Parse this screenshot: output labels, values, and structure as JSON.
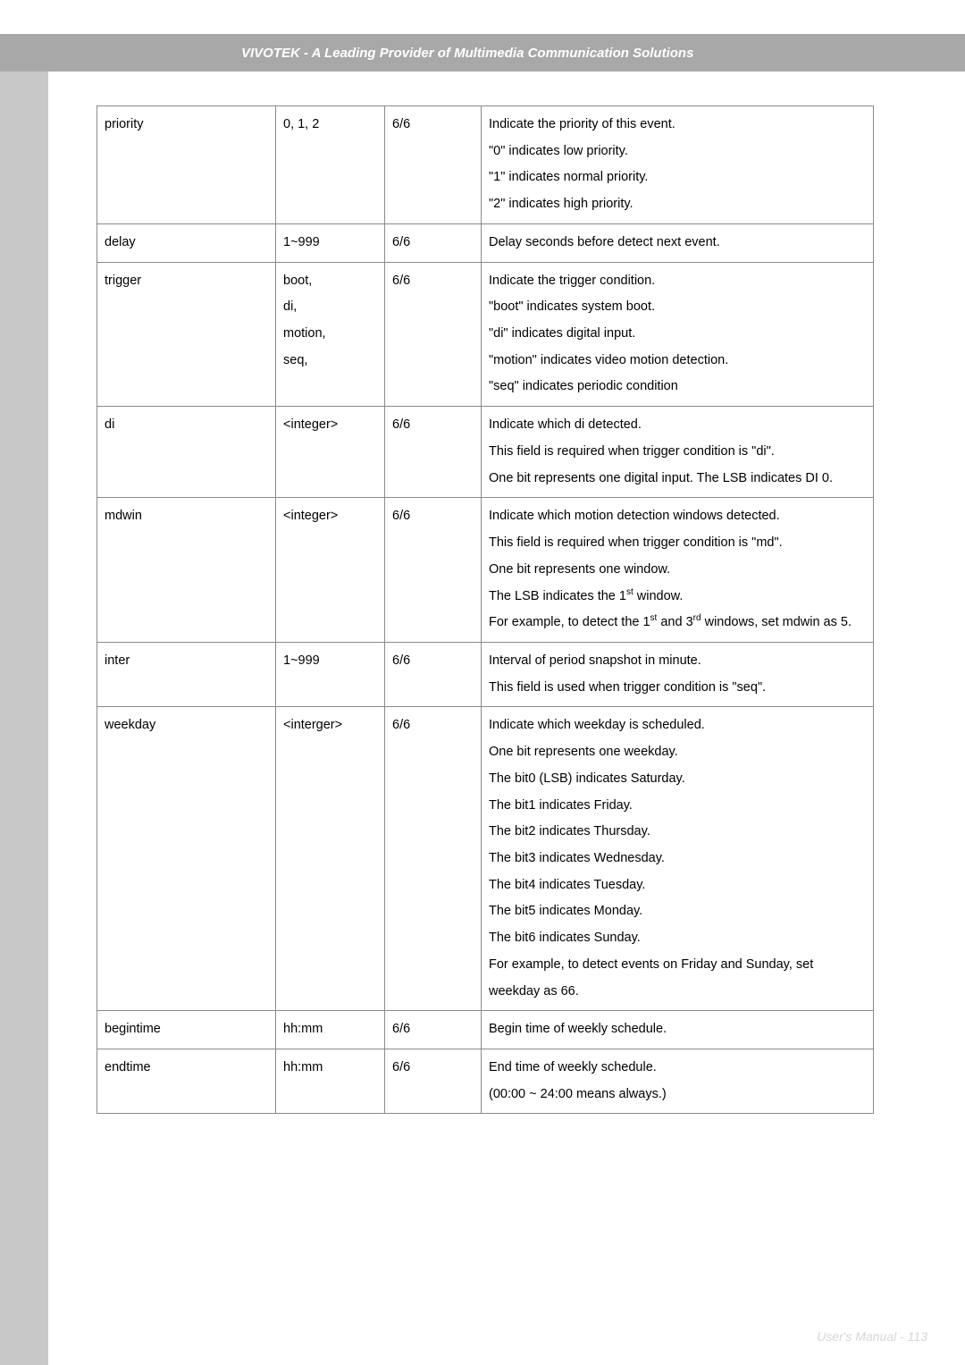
{
  "header": {
    "title": "VIVOTEK - A Leading Provider of Multimedia Communication Solutions"
  },
  "footer": {
    "text": "User's Manual - 113"
  },
  "colors": {
    "header_band": "#a8a8a8",
    "side_bar": "#c8c8c8",
    "border": "#8a8a8a",
    "footer_text": "#d6d6d6"
  },
  "table": {
    "rows": [
      {
        "name": "priority",
        "values": "0, 1, 2",
        "perm": "6/6",
        "desc": [
          "Indicate the priority of this event.",
          "\"0\" indicates low priority.",
          "\"1\" indicates normal priority.",
          "\"2\" indicates high priority."
        ]
      },
      {
        "name": "delay",
        "values": "1~999",
        "perm": "6/6",
        "desc": [
          "Delay seconds before detect next event."
        ]
      },
      {
        "name": "trigger",
        "values_lines": [
          "boot,",
          "di,",
          "motion,",
          "seq,"
        ],
        "perm": "6/6",
        "desc": [
          "Indicate the trigger condition.",
          "\"boot\" indicates system boot.",
          "\"di\" indicates digital input.",
          "\"motion\" indicates video motion detection.",
          "\"seq\" indicates periodic condition"
        ]
      },
      {
        "name": "di",
        "values": "<integer>",
        "perm": "6/6",
        "desc": [
          "Indicate which di detected.",
          "This field is required when trigger condition is \"di\".",
          "One bit represents one digital input. The LSB indicates DI 0."
        ]
      },
      {
        "name": "mdwin",
        "values": "<integer>",
        "perm": "6/6",
        "desc_html": [
          "Indicate which motion detection windows detected.",
          "This field is required when trigger condition is \"md\".",
          "One bit represents one window.",
          "The LSB indicates the 1<sup>st</sup> window.",
          "For example, to detect the 1<sup>st</sup> and 3<sup>rd</sup> windows, set mdwin as 5."
        ]
      },
      {
        "name": "inter",
        "values": "1~999",
        "perm": "6/6",
        "desc": [
          "Interval of period snapshot in minute.",
          "This field is used when trigger condition is \"seq\"."
        ]
      },
      {
        "name": "weekday",
        "values": "<interger>",
        "perm": "6/6",
        "desc": [
          "Indicate which weekday is scheduled.",
          "One bit represents one weekday.",
          "The bit0 (LSB) indicates Saturday.",
          "The bit1 indicates Friday.",
          "The bit2 indicates Thursday.",
          "The bit3 indicates Wednesday.",
          "The bit4 indicates Tuesday.",
          "The bit5 indicates Monday.",
          "The bit6 indicates Sunday.",
          "For example, to detect events on Friday and Sunday, set weekday as 66."
        ]
      },
      {
        "name": "begintime",
        "values": "hh:mm",
        "perm": "6/6",
        "desc": [
          "Begin time of weekly schedule."
        ]
      },
      {
        "name": "endtime",
        "values": "hh:mm",
        "perm": "6/6",
        "desc": [
          "End time of weekly schedule.",
          "(00:00 ~ 24:00 means always.)"
        ]
      }
    ]
  }
}
